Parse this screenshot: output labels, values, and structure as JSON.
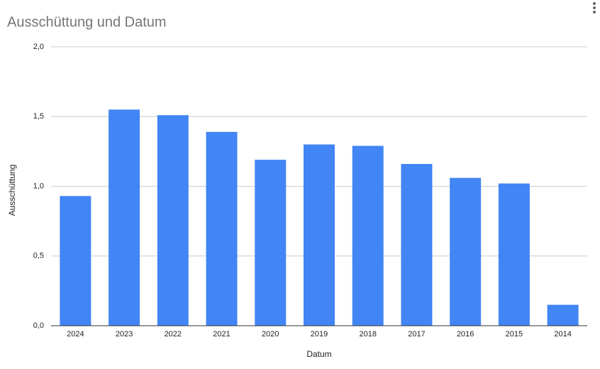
{
  "chart_data": {
    "type": "bar",
    "title": "Ausschüttung und Datum",
    "x_label": "Datum",
    "y_label": "Ausschüttung",
    "categories": [
      "2024",
      "2023",
      "2022",
      "2021",
      "2020",
      "2019",
      "2018",
      "2017",
      "2016",
      "2015",
      "2014"
    ],
    "values": [
      0.93,
      1.55,
      1.51,
      1.39,
      1.19,
      1.3,
      1.29,
      1.16,
      1.06,
      1.02,
      0.15
    ],
    "color": "#4285f4",
    "ylim": [
      0,
      2
    ],
    "yticks": [
      {
        "value": 0,
        "label": "0,0"
      },
      {
        "value": 0.5,
        "label": "0,5"
      },
      {
        "value": 1,
        "label": "1,0"
      },
      {
        "value": 1.5,
        "label": "1,5"
      },
      {
        "value": 2,
        "label": "2,0"
      }
    ],
    "grid": true
  }
}
